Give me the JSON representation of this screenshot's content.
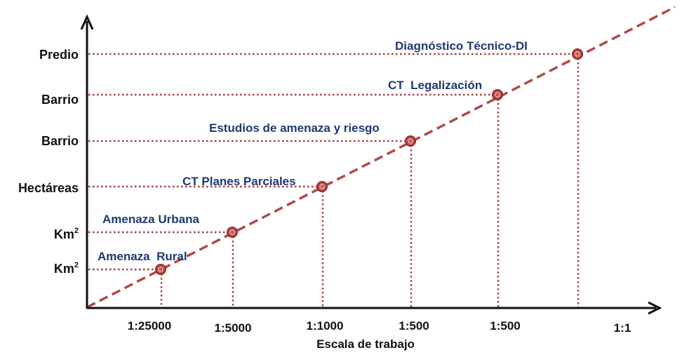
{
  "colors": {
    "line": "#b04a48",
    "guide": "#a83a3a",
    "label": "#1f3872",
    "marker_fill": "#c0504d",
    "marker_stroke": "#8b2c2c",
    "axis": "#111111"
  },
  "y_axis": {
    "levels": [
      {
        "text": "Predio",
        "sup": ""
      },
      {
        "text": "Barrio",
        "sup": ""
      },
      {
        "text": "Barrio",
        "sup": ""
      },
      {
        "text": "Hectáreas",
        "sup": ""
      },
      {
        "text": "Km",
        "sup": "2"
      },
      {
        "text": "Km",
        "sup": "2"
      }
    ]
  },
  "x_axis": {
    "title": "Escala de trabajo",
    "ticks": [
      "1:25000",
      "1:5000",
      "1:1000",
      "1:500",
      "1:500",
      "1:1"
    ]
  },
  "points": [
    {
      "label": "Amenaza  Rural",
      "x_scale": "1:25000",
      "level": "Km2"
    },
    {
      "label": "Amenaza Urbana",
      "x_scale": "1:5000",
      "level": "Km2"
    },
    {
      "label": "CT Planes Parciales",
      "x_scale": "1:1000",
      "level": "Hectáreas"
    },
    {
      "label": "Estudios de amenaza y riesgo",
      "x_scale": "1:500",
      "level": "Barrio"
    },
    {
      "label": "CT  Legalización",
      "x_scale": "1:500",
      "level": "Barrio"
    },
    {
      "label": "Diagnóstico Técnico-DI",
      "x_scale": "1:1",
      "level": "Predio"
    }
  ]
}
